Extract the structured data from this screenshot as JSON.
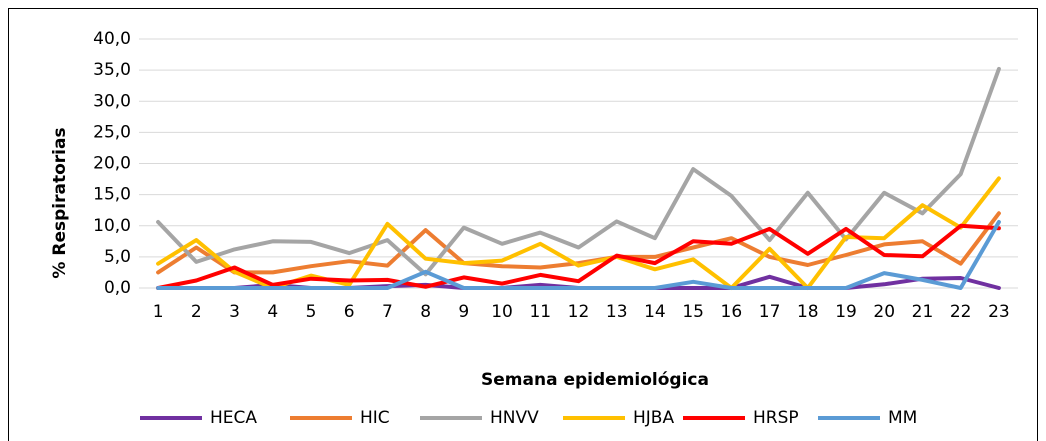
{
  "chart_data": {
    "type": "line",
    "xlabel": "Semana epidemiológica",
    "ylabel": "% Respiratorias",
    "categories": [
      "1",
      "2",
      "3",
      "4",
      "5",
      "6",
      "7",
      "8",
      "9",
      "10",
      "11",
      "12",
      "13",
      "14",
      "15",
      "16",
      "17",
      "18",
      "19",
      "20",
      "21",
      "22",
      "23"
    ],
    "series": [
      {
        "name": "HECA",
        "color": "#7030a0",
        "values": [
          0,
          0,
          0,
          0.5,
          0,
          0,
          0.3,
          0.5,
          0,
          0,
          0.5,
          0,
          0,
          0,
          0,
          0,
          1.8,
          0,
          0,
          0.6,
          1.5,
          1.6,
          0
        ]
      },
      {
        "name": "HIC",
        "color": "#ed7d31",
        "values": [
          2.5,
          6.5,
          2.5,
          2.5,
          3.5,
          4.3,
          3.6,
          9.3,
          4,
          3.5,
          3.3,
          4,
          5,
          5,
          6.5,
          8,
          5,
          3.7,
          5.3,
          7,
          7.5,
          3.9,
          12
        ]
      },
      {
        "name": "HNVV",
        "color": "#a5a5a5",
        "values": [
          10.6,
          4.2,
          6.2,
          7.5,
          7.4,
          5.6,
          7.7,
          2.2,
          9.7,
          7.1,
          8.9,
          6.5,
          10.7,
          8,
          19.1,
          14.8,
          7.7,
          15.3,
          7.8,
          15.3,
          12,
          18.3,
          35.2
        ]
      },
      {
        "name": "HJBA",
        "color": "#ffc000",
        "values": [
          3.9,
          7.7,
          2.6,
          0,
          2,
          0.5,
          10.3,
          4.7,
          4,
          4.4,
          7.1,
          3.6,
          5,
          3,
          4.6,
          0,
          6.3,
          0,
          8.2,
          8,
          13.3,
          9.7,
          17.6
        ]
      },
      {
        "name": "HRSP",
        "color": "#ff0000",
        "values": [
          0,
          1.2,
          3.3,
          0.5,
          1.5,
          1.2,
          1.3,
          0.2,
          1.7,
          0.7,
          2.1,
          1.1,
          5.2,
          4,
          7.5,
          7.1,
          9.5,
          5.5,
          9.5,
          5.3,
          5.1,
          10,
          9.6
        ]
      },
      {
        "name": "MM",
        "color": "#5b9bd5",
        "values": [
          0,
          0,
          0,
          0,
          0,
          0,
          0,
          2.6,
          0,
          0,
          0,
          0,
          0,
          0,
          1,
          0,
          0,
          0,
          0,
          2.4,
          1.3,
          0,
          10.6
        ]
      }
    ],
    "ylim": [
      0,
      40
    ],
    "yticks": [
      {
        "value": 0,
        "label": "0,0"
      },
      {
        "value": 5,
        "label": "5,0"
      },
      {
        "value": 10,
        "label": "10,0"
      },
      {
        "value": 15,
        "label": "15,0"
      },
      {
        "value": 20,
        "label": "20,0"
      },
      {
        "value": 25,
        "label": "25,0"
      },
      {
        "value": 30,
        "label": "30,0"
      },
      {
        "value": 35,
        "label": "35,0"
      },
      {
        "value": 40,
        "label": "40,0"
      }
    ],
    "grid": true,
    "legend": "bottom"
  }
}
